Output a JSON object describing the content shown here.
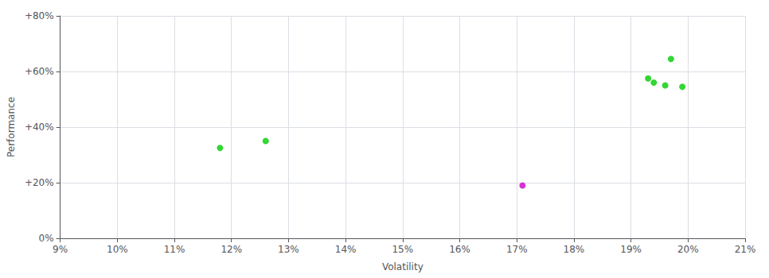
{
  "chart_data": {
    "type": "scatter",
    "xlabel": "Volatility",
    "ylabel": "Performance",
    "xlim": [
      0.09,
      0.21
    ],
    "ylim": [
      0.0,
      0.8
    ],
    "xticks": [
      {
        "value": 0.09,
        "label": "9%"
      },
      {
        "value": 0.1,
        "label": "10%"
      },
      {
        "value": 0.11,
        "label": "11%"
      },
      {
        "value": 0.12,
        "label": "12%"
      },
      {
        "value": 0.13,
        "label": "13%"
      },
      {
        "value": 0.14,
        "label": "14%"
      },
      {
        "value": 0.15,
        "label": "15%"
      },
      {
        "value": 0.16,
        "label": "16%"
      },
      {
        "value": 0.17,
        "label": "17%"
      },
      {
        "value": 0.18,
        "label": "18%"
      },
      {
        "value": 0.19,
        "label": "19%"
      },
      {
        "value": 0.2,
        "label": "20%"
      },
      {
        "value": 0.21,
        "label": "21%"
      }
    ],
    "yticks": [
      {
        "value": 0.0,
        "label": "0%"
      },
      {
        "value": 0.2,
        "label": "+20%"
      },
      {
        "value": 0.4,
        "label": "+40%"
      },
      {
        "value": 0.6,
        "label": "+60%"
      },
      {
        "value": 0.8,
        "label": "+80%"
      }
    ],
    "grid": true,
    "series": [
      {
        "color": "#00cc00",
        "x": [
          0.118,
          0.126,
          0.193,
          0.194,
          0.196,
          0.199,
          0.197
        ],
        "values": [
          0.325,
          0.35,
          0.575,
          0.56,
          0.55,
          0.545,
          0.645
        ]
      },
      {
        "color": "#cc00cc",
        "x": [
          0.171
        ],
        "values": [
          0.19
        ]
      }
    ]
  }
}
